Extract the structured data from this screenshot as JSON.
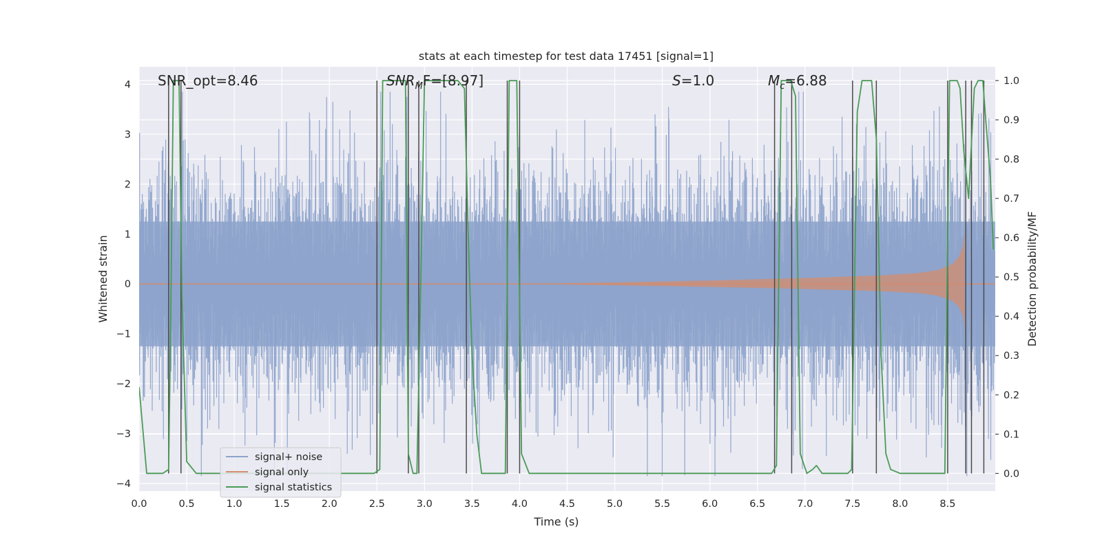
{
  "chart_data": {
    "type": "line",
    "title": "stats at each timestep for test data 17451 [signal=1]",
    "xlabel": "Time (s)",
    "ylabel_left": "Whitened strain",
    "ylabel_right": "Detection probability/MF",
    "xlim": [
      0.0,
      9.0
    ],
    "ylim_left": [
      -4.15,
      4.35
    ],
    "ylim_right": [
      -0.045,
      1.035
    ],
    "x_ticks": [
      "0.0",
      "0.5",
      "1.0",
      "1.5",
      "2.0",
      "2.5",
      "3.0",
      "3.5",
      "4.0",
      "4.5",
      "5.0",
      "5.5",
      "6.0",
      "6.5",
      "7.0",
      "7.5",
      "8.0",
      "8.5"
    ],
    "y_ticks_left": [
      "4",
      "3",
      "2",
      "1",
      "0",
      "−1",
      "−2",
      "−3",
      "−4"
    ],
    "y_ticks_right": [
      "1.0",
      "0.9",
      "0.8",
      "0.7",
      "0.6",
      "0.5",
      "0.4",
      "0.3",
      "0.2",
      "0.1",
      "0.0"
    ],
    "annotations": {
      "snr_opt": "SNR_opt=8.46",
      "snr_mf_sym": "SNR",
      "snr_mf_sub": "M",
      "snr_mf_rest": "F=[8.97]",
      "s_sym": "S",
      "s_rest": "=1.0",
      "mc_sym": "M",
      "mc_sub": "c",
      "mc_rest": "=6.88"
    },
    "legend": {
      "position": "lower-left",
      "entries": [
        "signal+ noise",
        "signal only",
        "signal statistics"
      ]
    },
    "colors": {
      "noise": "#8da3cb",
      "signal": "#d38c6e",
      "stats": "#4a9b55",
      "vlines": "#4a4a4a",
      "axes_bg": "#eaeaf2",
      "grid": "#ffffff"
    },
    "series": [
      {
        "name": "signal statistics",
        "axis": "right",
        "x": [
          0.0,
          0.08,
          0.25,
          0.31,
          0.33,
          0.36,
          0.42,
          0.45,
          0.5,
          0.6,
          1.0,
          2.0,
          2.47,
          2.53,
          2.56,
          2.62,
          2.8,
          2.83,
          2.88,
          2.92,
          2.97,
          3.0,
          3.05,
          3.2,
          3.35,
          3.42,
          3.46,
          3.5,
          3.55,
          3.6,
          3.7,
          3.85,
          3.89,
          3.92,
          3.97,
          4.02,
          4.1,
          5.0,
          6.0,
          6.6,
          6.65,
          6.7,
          6.75,
          6.8,
          6.85,
          6.9,
          6.95,
          7.02,
          7.08,
          7.12,
          7.18,
          7.3,
          7.45,
          7.49,
          7.55,
          7.6,
          7.65,
          7.7,
          7.75,
          7.8,
          7.85,
          7.9,
          8.0,
          8.2,
          8.4,
          8.47,
          8.52,
          8.55,
          8.6,
          8.63,
          8.67,
          8.72,
          8.78,
          8.82,
          8.87,
          8.9,
          8.95,
          8.98
        ],
        "y": [
          0.22,
          0.0,
          0.0,
          0.01,
          0.35,
          1.0,
          1.0,
          0.45,
          0.03,
          0.0,
          0.0,
          0.0,
          0.0,
          0.01,
          1.0,
          1.0,
          1.0,
          0.05,
          0.0,
          0.0,
          0.6,
          1.0,
          1.0,
          1.0,
          1.0,
          0.98,
          0.6,
          0.3,
          0.1,
          0.0,
          0.0,
          0.0,
          1.0,
          1.0,
          1.0,
          0.05,
          0.0,
          0.0,
          0.0,
          0.0,
          0.0,
          0.02,
          1.0,
          1.0,
          1.0,
          0.96,
          0.05,
          0.0,
          0.01,
          0.02,
          0.0,
          0.0,
          0.0,
          0.01,
          0.92,
          1.0,
          1.0,
          1.0,
          0.85,
          0.3,
          0.05,
          0.01,
          0.0,
          0.0,
          0.0,
          0.0,
          1.0,
          1.0,
          1.0,
          0.98,
          0.82,
          0.7,
          0.98,
          1.0,
          1.0,
          0.9,
          0.75,
          0.57
        ]
      },
      {
        "name": "vertical markers",
        "axis": "right",
        "x": [
          0.31,
          0.44,
          2.5,
          2.83,
          2.94,
          3.44,
          3.87,
          4.0,
          6.68,
          6.86,
          7.5,
          7.75,
          8.5,
          8.69,
          8.75,
          8.88
        ]
      },
      {
        "name": "signal+ noise",
        "axis": "left",
        "description_values": "noise band approx ±1.5 with spikes to ±3.8, whitened"
      },
      {
        "name": "signal only",
        "axis": "left",
        "envelope_x": [
          0.0,
          4.0,
          5.0,
          6.0,
          7.0,
          7.8,
          8.2,
          8.4,
          8.55,
          8.62,
          8.66,
          8.68
        ],
        "envelope_y": [
          0.0,
          0.0,
          0.03,
          0.07,
          0.12,
          0.17,
          0.22,
          0.28,
          0.4,
          0.55,
          0.75,
          1.05
        ]
      }
    ]
  }
}
